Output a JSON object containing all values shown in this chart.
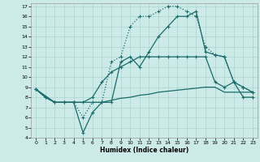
{
  "title": "",
  "xlabel": "Humidex (Indice chaleur)",
  "bg_color": "#cceae7",
  "grid_color": "#aad4d0",
  "line_color": "#1a6b6b",
  "xlim": [
    -0.5,
    23.5
  ],
  "ylim": [
    4,
    17.3
  ],
  "yticks": [
    4,
    5,
    6,
    7,
    8,
    9,
    10,
    11,
    12,
    13,
    14,
    15,
    16,
    17
  ],
  "xticks": [
    0,
    1,
    2,
    3,
    4,
    5,
    6,
    7,
    8,
    9,
    10,
    11,
    12,
    13,
    14,
    15,
    16,
    17,
    18,
    19,
    20,
    21,
    22,
    23
  ],
  "line1_x": [
    0,
    1,
    2,
    3,
    4,
    5,
    6,
    7,
    8,
    9,
    10,
    11,
    12,
    13,
    14,
    15,
    16,
    17,
    18,
    19,
    20,
    21,
    22,
    23
  ],
  "line1_y": [
    8.8,
    8.0,
    7.5,
    7.5,
    7.5,
    7.5,
    7.5,
    7.5,
    7.7,
    7.9,
    8.0,
    8.2,
    8.3,
    8.5,
    8.6,
    8.7,
    8.8,
    8.9,
    9.0,
    9.0,
    8.5,
    8.5,
    8.5,
    8.5
  ],
  "line2_x": [
    0,
    1,
    2,
    3,
    4,
    5,
    6,
    7,
    8,
    9,
    10,
    11,
    12,
    13,
    14,
    15,
    16,
    17,
    18,
    19,
    20,
    21,
    22,
    23
  ],
  "line2_y": [
    8.8,
    8.0,
    7.5,
    7.5,
    7.5,
    7.5,
    8.0,
    9.5,
    10.5,
    11.0,
    11.5,
    12.0,
    12.0,
    12.0,
    12.0,
    12.0,
    12.0,
    12.0,
    12.0,
    9.5,
    9.0,
    9.5,
    8.0,
    8.0
  ],
  "line3_x": [
    0,
    1,
    2,
    3,
    4,
    5,
    6,
    7,
    8,
    9,
    10,
    11,
    12,
    13,
    14,
    15,
    16,
    17,
    18,
    19,
    20,
    21,
    22,
    23
  ],
  "line3_y": [
    8.8,
    8.0,
    7.5,
    7.5,
    7.5,
    6.0,
    7.5,
    7.5,
    11.5,
    12.0,
    15.0,
    16.0,
    16.0,
    16.5,
    17.0,
    17.0,
    16.5,
    16.0,
    13.0,
    12.2,
    12.0,
    9.5,
    9.0,
    8.5
  ],
  "line4_x": [
    0,
    2,
    3,
    4,
    5,
    6,
    7,
    8,
    9,
    10,
    11,
    12,
    13,
    14,
    15,
    16,
    17,
    18,
    19,
    20,
    21,
    22,
    23
  ],
  "line4_y": [
    8.8,
    7.5,
    7.5,
    7.5,
    4.5,
    6.5,
    7.5,
    7.5,
    11.5,
    12.0,
    11.0,
    12.5,
    14.0,
    15.0,
    16.0,
    16.0,
    16.5,
    12.5,
    12.2,
    12.0,
    9.5,
    9.0,
    8.5
  ]
}
